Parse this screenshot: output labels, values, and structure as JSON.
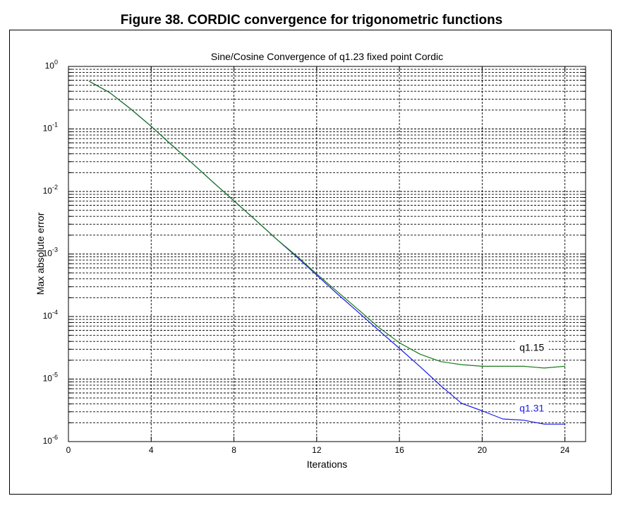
{
  "figure_caption": "Figure 38. CORDIC convergence for trigonometric functions",
  "chart_data": {
    "type": "line",
    "title": "Sine/Cosine Convergence of q1.23 fixed point Cordic",
    "xlabel": "Iterations",
    "ylabel": "Max absolute error",
    "xlim": [
      0,
      25
    ],
    "ylim": [
      1e-06,
      1
    ],
    "y_scale": "log",
    "x_ticks": [
      0,
      4,
      8,
      12,
      16,
      20,
      24
    ],
    "y_ticks": [
      {
        "base": "10",
        "exp": "0",
        "value": 1
      },
      {
        "base": "10",
        "exp": "-1",
        "value": 0.1
      },
      {
        "base": "10",
        "exp": "-2",
        "value": 0.01
      },
      {
        "base": "10",
        "exp": "-3",
        "value": 0.001
      },
      {
        "base": "10",
        "exp": "-4",
        "value": 0.0001
      },
      {
        "base": "10",
        "exp": "-5",
        "value": 1e-05
      },
      {
        "base": "10",
        "exp": "-6",
        "value": 1e-06
      }
    ],
    "grid": true,
    "series": [
      {
        "name": "q1.15",
        "color": "#1a7a1a",
        "x": [
          1,
          2,
          3,
          4,
          5,
          6,
          7,
          8,
          9,
          10,
          11,
          12,
          13,
          14,
          15,
          16,
          17,
          18,
          19,
          20,
          21,
          22,
          23,
          24
        ],
        "y": [
          0.58,
          0.38,
          0.21,
          0.11,
          0.055,
          0.028,
          0.014,
          0.0071,
          0.0036,
          0.0018,
          0.00095,
          0.00048,
          0.00025,
          0.00013,
          6.7e-05,
          3.8e-05,
          2.5e-05,
          1.9e-05,
          1.7e-05,
          1.6e-05,
          1.6e-05,
          1.6e-05,
          1.5e-05,
          1.6e-05
        ]
      },
      {
        "name": "q1.31",
        "color": "#1a1aee",
        "x": [
          1,
          2,
          3,
          4,
          5,
          6,
          7,
          8,
          9,
          10,
          11,
          12,
          13,
          14,
          15,
          16,
          17,
          18,
          19,
          20,
          21,
          22,
          23,
          24
        ],
        "y": [
          0.58,
          0.38,
          0.21,
          0.11,
          0.055,
          0.028,
          0.014,
          0.0071,
          0.0036,
          0.0018,
          0.00092,
          0.00046,
          0.00023,
          0.000118,
          6e-05,
          3.1e-05,
          1.58e-05,
          7.8e-06,
          4.1e-06,
          3.1e-06,
          2.3e-06,
          2.2e-06,
          1.9e-06,
          1.9e-06
        ]
      }
    ],
    "annotations": [
      {
        "text": "q1.15",
        "x": 22.4,
        "y": 3e-05,
        "color": "#000000"
      },
      {
        "text": "q1.31",
        "x": 22.4,
        "y": 3.2e-06,
        "color": "#1a1aee"
      }
    ]
  }
}
